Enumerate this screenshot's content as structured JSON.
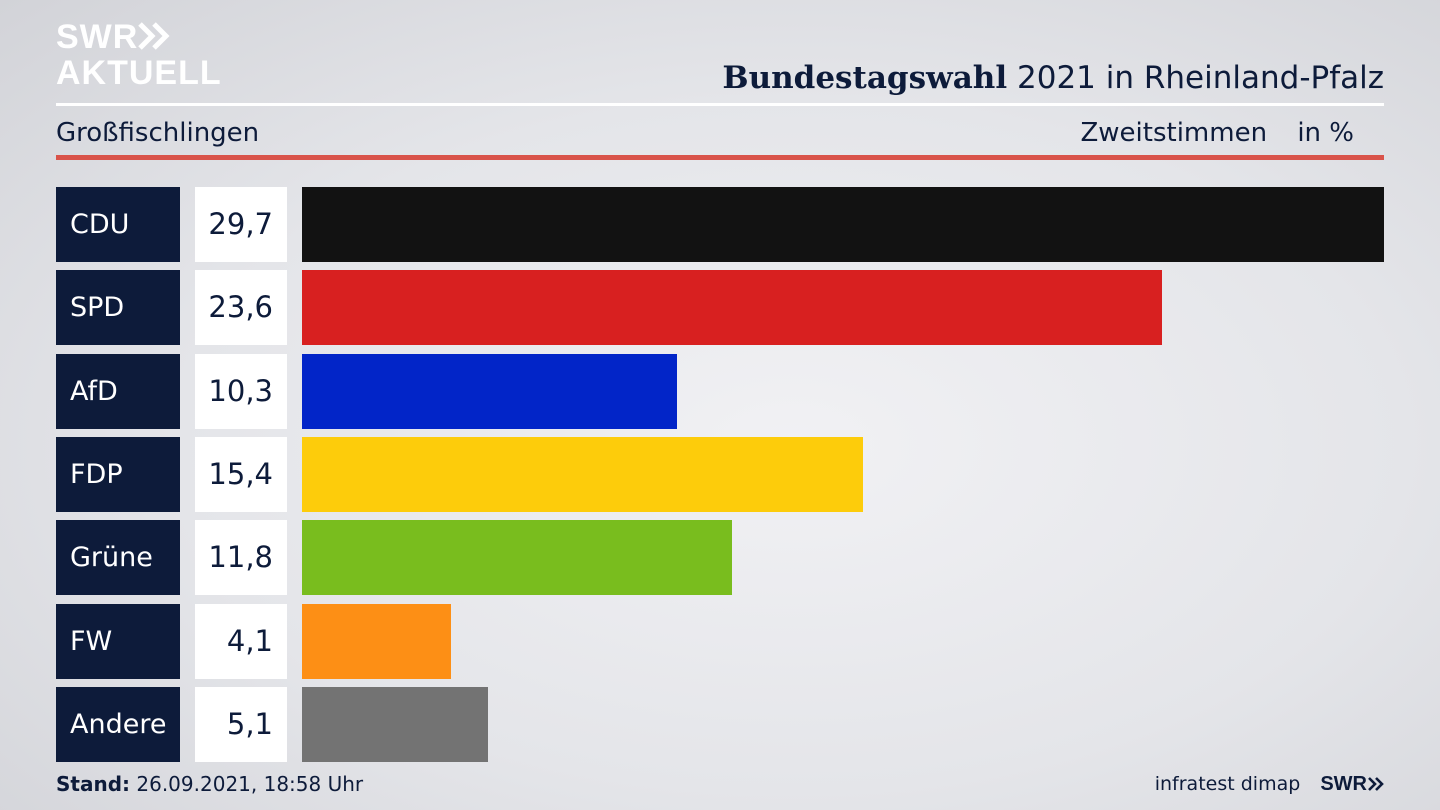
{
  "logo": {
    "line1": "SWR",
    "line2": "AKTUELL"
  },
  "header": {
    "title_bold": "Bundestagswahl",
    "title_rest": "2021 in Rheinland-Pfalz"
  },
  "subheader": {
    "location": "Großfischlingen",
    "measure": "Zweitstimmen",
    "unit": "in %"
  },
  "footer": {
    "stand_label": "Stand:",
    "stand_value": "26.09.2021, 18:58 Uhr",
    "source": "infratest dimap",
    "brand": "SWR"
  },
  "colors": {
    "CDU": "#121212",
    "SPD": "#d82020",
    "AfD": "#0225c8",
    "FDP": "#fdcc0b",
    "Grüne": "#79bd1e",
    "FW": "#fd8f15",
    "Andere": "#737373"
  },
  "chart_data": {
    "type": "bar",
    "orientation": "horizontal",
    "categories": [
      "CDU",
      "SPD",
      "AfD",
      "FDP",
      "Grüne",
      "FW",
      "Andere"
    ],
    "values": [
      29.7,
      23.6,
      10.3,
      15.4,
      11.8,
      4.1,
      5.1
    ],
    "value_labels": [
      "29,7",
      "23,6",
      "10,3",
      "15,4",
      "11,8",
      "4,1",
      "5,1"
    ],
    "title": "Bundestagswahl 2021 in Rheinland-Pfalz",
    "subtitle": "Großfischlingen",
    "xlabel": "Zweitstimmen",
    "unit": "in %",
    "xlim": [
      0,
      29.7
    ],
    "grid": false
  }
}
